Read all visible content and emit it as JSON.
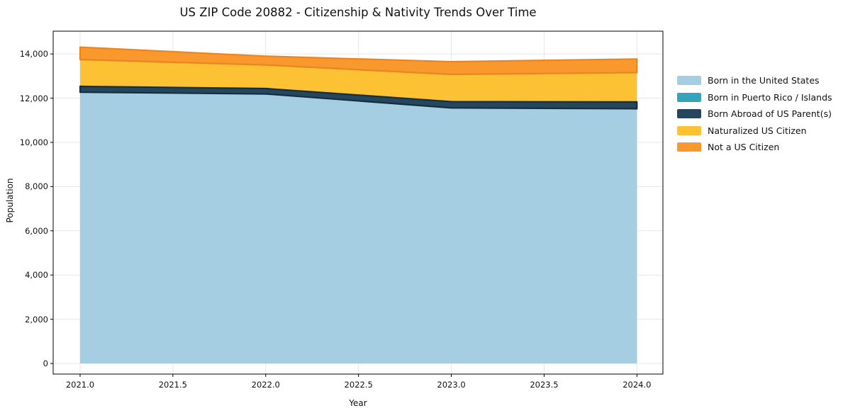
{
  "figure": {
    "title": "US ZIP Code 20882 - Citizenship & Nativity Trends Over Time"
  },
  "chart_data": {
    "type": "area",
    "stacked": true,
    "title": "US ZIP Code 20882 - Citizenship & Nativity Trends Over Time",
    "xlabel": "Year",
    "ylabel": "Population",
    "x": [
      2021,
      2022,
      2023,
      2024
    ],
    "series": [
      {
        "name": "Born in the United States",
        "color": "#a6cee3",
        "edge": "#8fc0da",
        "edge_visible": false,
        "values": [
          12270,
          12190,
          11560,
          11520
        ]
      },
      {
        "name": "Born in Puerto Rico / Islands",
        "color": "#36a3bd",
        "edge": "#2b8da6",
        "edge_visible": false,
        "values": [
          0,
          0,
          0,
          0
        ]
      },
      {
        "name": "Born Abroad of US Parent(s)",
        "color": "#25465c",
        "edge": "#152e3f",
        "edge_visible": true,
        "values": [
          265,
          245,
          280,
          310
        ]
      },
      {
        "name": "Naturalized US Citizen",
        "color": "#fcc233",
        "edge": "#efb325",
        "edge_visible": false,
        "values": [
          1210,
          1065,
          1235,
          1330
        ]
      },
      {
        "name": "Not a US Citizen",
        "color": "#f8982d",
        "edge": "#ec8420",
        "edge_visible": true,
        "values": [
          560,
          400,
          575,
          610
        ]
      }
    ],
    "x_ticks": {
      "values": [
        2021.0,
        2021.5,
        2022.0,
        2022.5,
        2023.0,
        2023.5,
        2024.0
      ],
      "labels": [
        "2021.0",
        "2021.5",
        "2022.0",
        "2022.5",
        "2023.0",
        "2023.5",
        "2024.0"
      ]
    },
    "y_ticks": {
      "values": [
        0,
        2000,
        4000,
        6000,
        8000,
        10000,
        12000,
        14000
      ],
      "labels": [
        "0",
        "2,000",
        "4,000",
        "6,000",
        "8,000",
        "10,000",
        "12,000",
        "14,000"
      ]
    },
    "xlim": [
      2020.855,
      2024.14
    ],
    "ylim": [
      -480,
      15030
    ],
    "grid": true,
    "legend_position": "right-outside"
  }
}
